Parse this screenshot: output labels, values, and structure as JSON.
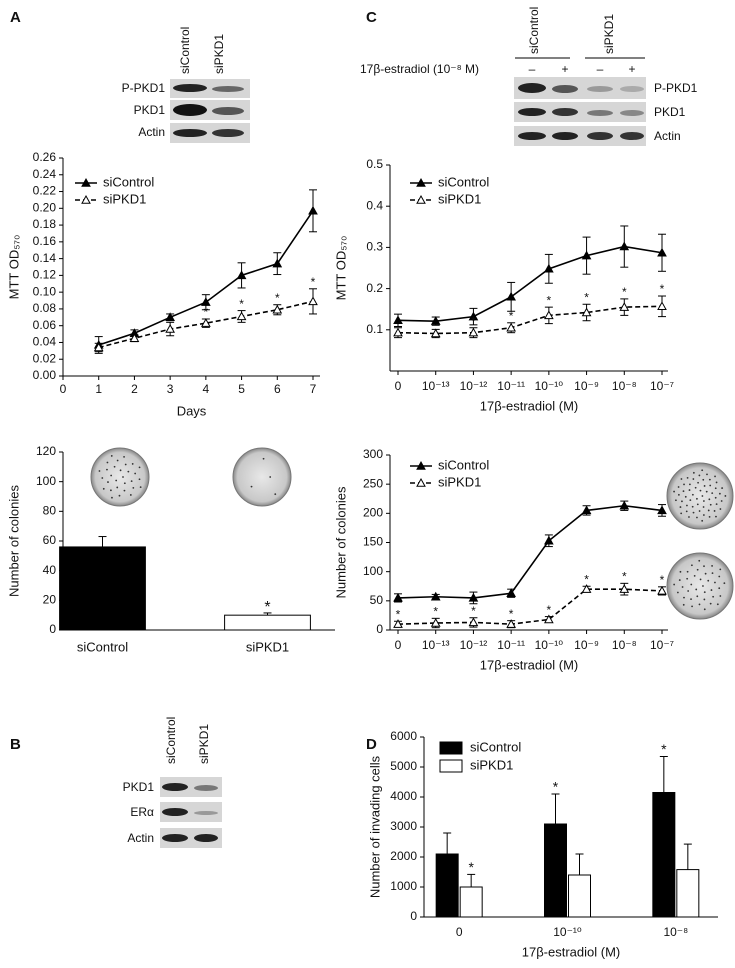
{
  "panels": [
    "A",
    "B",
    "C",
    "D"
  ],
  "blots": [
    {
      "lanes": [
        "siControl",
        "siPKD1"
      ],
      "rows": [
        "P-PKD1",
        "PKD1",
        "Actin"
      ]
    },
    {
      "lanes": [
        "siControl",
        "siPKD1"
      ],
      "rows": [
        "PKD1",
        "ERα",
        "Actin"
      ]
    },
    {
      "lanes": [
        "siControl",
        "siPKD1"
      ],
      "treatment": "17β-estradiol (10⁻⁸ M)",
      "treatment_lanes": [
        "–",
        "+",
        "–",
        "+"
      ],
      "rows": [
        "P-PKD1",
        "PKD1",
        "Actin"
      ]
    }
  ],
  "chart_data": [
    {
      "type": "line",
      "x": [
        1,
        2,
        3,
        4,
        5,
        6,
        7
      ],
      "xlim": [
        0,
        7
      ],
      "xticks": [
        0,
        1,
        2,
        3,
        4,
        5,
        6,
        7
      ],
      "ylim": [
        0,
        0.26
      ],
      "yticks": [
        {
          "value": 0,
          "label": "0.00"
        },
        {
          "value": 0.02,
          "label": "0.02"
        },
        {
          "value": 0.04,
          "label": "0.04"
        },
        {
          "value": 0.06,
          "label": "0.06"
        },
        {
          "value": 0.08,
          "label": "0.08"
        },
        {
          "value": 0.1,
          "label": "0.10"
        },
        {
          "value": 0.12,
          "label": "0.12"
        },
        {
          "value": 0.14,
          "label": "0.14"
        },
        {
          "value": 0.16,
          "label": "0.16"
        },
        {
          "value": 0.18,
          "label": "0.18"
        },
        {
          "value": 0.2,
          "label": "0.20"
        },
        {
          "value": 0.22,
          "label": "0.22"
        },
        {
          "value": 0.24,
          "label": "0.24"
        },
        {
          "value": 0.26,
          "label": "0.26"
        }
      ],
      "xlabel": "Days",
      "ylabel": "MTT OD₅₇₀",
      "legend": "upper left",
      "series": [
        {
          "name": "siControl",
          "color": "#000000",
          "marker_fill": "#000000",
          "dash": false,
          "values": [
            0.037,
            0.051,
            0.07,
            0.088,
            0.12,
            0.134,
            0.197
          ],
          "errors": [
            0.01,
            0.004,
            0.004,
            0.009,
            0.015,
            0.013,
            0.025
          ]
        },
        {
          "name": "siPKD1",
          "color": "#000000",
          "marker_fill": "#ffffff",
          "dash": true,
          "values": [
            0.034,
            0.045,
            0.056,
            0.063,
            0.071,
            0.079,
            0.089
          ],
          "errors": [
            0.005,
            0.004,
            0.008,
            0.005,
            0.007,
            0.006,
            0.015
          ],
          "stars": [
            null,
            null,
            null,
            "*",
            "*",
            "*",
            "*"
          ]
        }
      ]
    },
    {
      "type": "bar",
      "categories": [
        "siControl",
        "siPKD1"
      ],
      "values": [
        56,
        10
      ],
      "errors": [
        7,
        1.5
      ],
      "colors": [
        "#000000",
        "#ffffff"
      ],
      "stars": [
        null,
        "*"
      ],
      "ylim": [
        0,
        120
      ],
      "yticks": [
        0,
        20,
        40,
        60,
        80,
        100,
        120
      ],
      "ylabel": "Number of colonies"
    },
    {
      "type": "line",
      "categories": [
        "0",
        "10⁻¹³",
        "10⁻¹²",
        "10⁻¹¹",
        "10⁻¹⁰",
        "10⁻⁹",
        "10⁻⁸",
        "10⁻⁷"
      ],
      "ylim": [
        0,
        0.5
      ],
      "yticks": [
        0.1,
        0.2,
        0.3,
        0.4,
        0.5
      ],
      "xlabel": "17β-estradiol (M)",
      "ylabel": "MTT OD₅₇₀",
      "legend": "upper left",
      "series": [
        {
          "name": "siControl",
          "color": "#000000",
          "marker_fill": "#000000",
          "dash": false,
          "values": [
            0.123,
            0.121,
            0.132,
            0.18,
            0.248,
            0.28,
            0.302,
            0.287
          ],
          "errors": [
            0.015,
            0.01,
            0.02,
            0.035,
            0.035,
            0.045,
            0.05,
            0.045
          ]
        },
        {
          "name": "siPKD1",
          "color": "#000000",
          "marker_fill": "#ffffff",
          "dash": true,
          "values": [
            0.093,
            0.091,
            0.093,
            0.105,
            0.135,
            0.142,
            0.155,
            0.157
          ],
          "errors": [
            0.012,
            0.01,
            0.012,
            0.012,
            0.02,
            0.02,
            0.02,
            0.025
          ],
          "stars": [
            null,
            null,
            "*",
            "*",
            "*",
            "*",
            "*",
            "*"
          ]
        }
      ]
    },
    {
      "type": "line",
      "categories": [
        "0",
        "10⁻¹³",
        "10⁻¹²",
        "10⁻¹¹",
        "10⁻¹⁰",
        "10⁻⁹",
        "10⁻⁸",
        "10⁻⁷"
      ],
      "ylim": [
        0,
        300
      ],
      "yticks": [
        0,
        50,
        100,
        150,
        200,
        250,
        300
      ],
      "xlabel": "17β-estradiol (M)",
      "ylabel": "Number of colonies",
      "legend": "upper left",
      "series": [
        {
          "name": "siControl",
          "color": "#000000",
          "marker_fill": "#000000",
          "dash": false,
          "values": [
            55,
            57,
            55,
            63,
            153,
            205,
            213,
            205
          ],
          "errors": [
            7,
            4,
            10,
            7,
            10,
            8,
            8,
            10
          ]
        },
        {
          "name": "siPKD1",
          "color": "#000000",
          "marker_fill": "#ffffff",
          "dash": true,
          "values": [
            10,
            12,
            13,
            10,
            18,
            70,
            70,
            67
          ],
          "errors": [
            5,
            8,
            8,
            6,
            5,
            5,
            10,
            7
          ],
          "stars": [
            "*",
            "*",
            "*",
            "*",
            "*",
            "*",
            "*",
            "*"
          ]
        }
      ]
    },
    {
      "type": "grouped_bar",
      "categories": [
        "0",
        "10⁻¹⁰",
        "10⁻⁸"
      ],
      "ylim": [
        0,
        6000
      ],
      "yticks": [
        0,
        1000,
        2000,
        3000,
        4000,
        5000,
        6000
      ],
      "xlabel": "17β-estradiol (M)",
      "ylabel": "Number of invading cells",
      "legend": "upper left",
      "series": [
        {
          "name": "siControl",
          "color": "#000000",
          "values": [
            2100,
            3100,
            4150
          ],
          "errors": [
            700,
            1000,
            1200
          ],
          "stars": [
            null,
            "*",
            "*"
          ]
        },
        {
          "name": "siPKD1",
          "color": "#ffffff",
          "values": [
            1000,
            1400,
            1580
          ],
          "errors": [
            420,
            700,
            850
          ],
          "stars": [
            "*",
            null,
            null
          ]
        }
      ]
    }
  ]
}
